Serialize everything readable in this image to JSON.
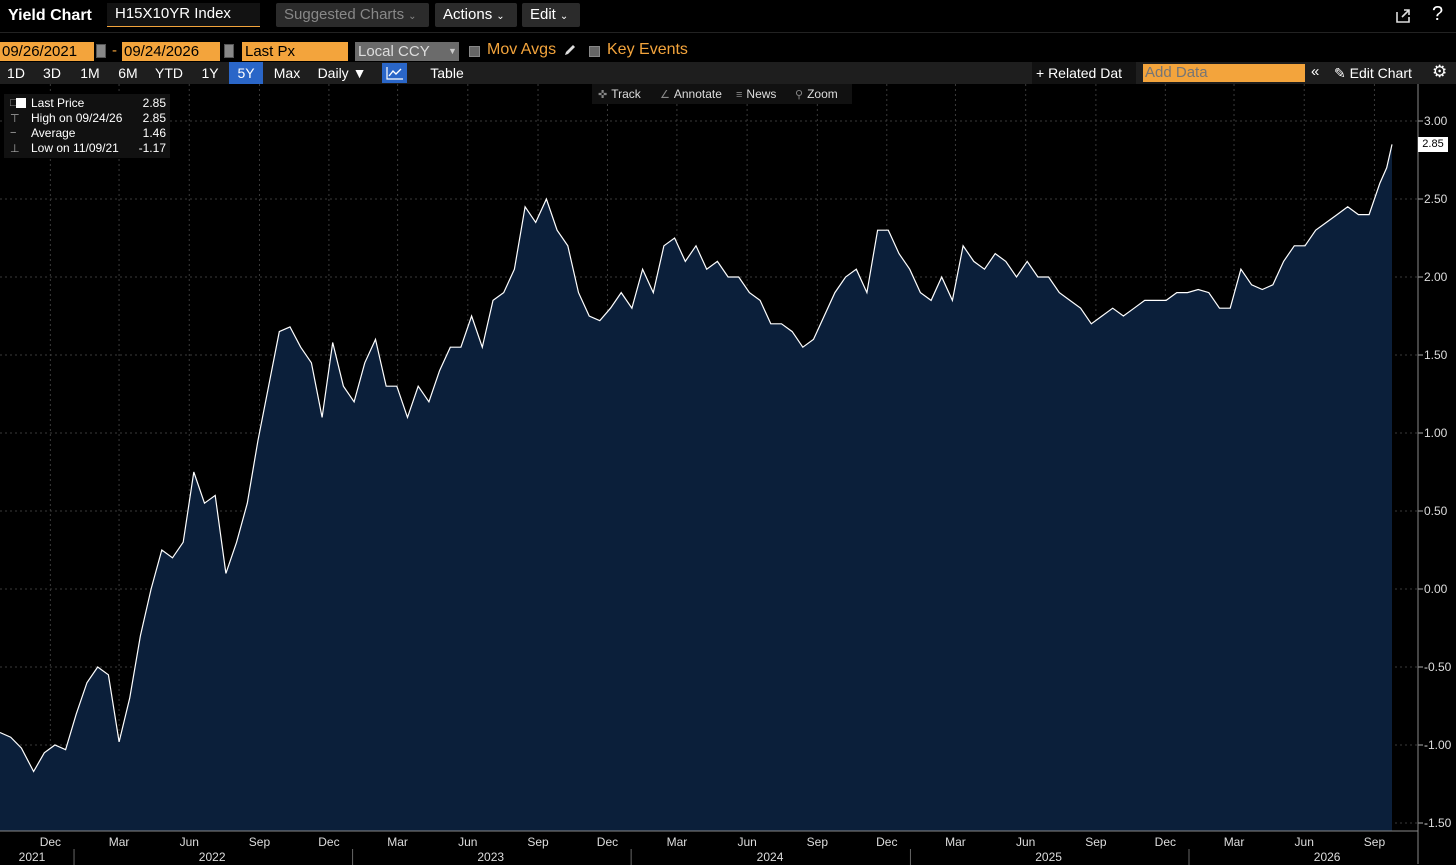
{
  "header": {
    "title": "Yield Chart",
    "ticker": "H15X10YR Index",
    "suggested_label": "Suggested Charts",
    "actions_label": "Actions",
    "edit_label": "Edit",
    "help_label": "?"
  },
  "controls": {
    "start_date": "09/26/2021",
    "end_date": "09/24/2026",
    "date_separator": "-",
    "field": "Last Px",
    "currency": "Local CCY",
    "mov_avgs_label": "Mov Avgs",
    "key_events_label": "Key Events",
    "mov_avgs_checked": false,
    "key_events_checked": false
  },
  "periods": {
    "p1d": "1D",
    "p3d": "3D",
    "p1m": "1M",
    "p6m": "6M",
    "ytd": "YTD",
    "p1y": "1Y",
    "p5y": "5Y",
    "max": "Max",
    "daily": "Daily ▼",
    "table": "Table",
    "active": "5Y"
  },
  "toolbar_right": {
    "related_label": "+ Related Dat",
    "add_data_placeholder": "Add Data",
    "collapse_label": "«",
    "edit_chart_label": "Edit Chart"
  },
  "chart_tools": {
    "track": "Track",
    "annotate": "Annotate",
    "news": "News",
    "zoom": "Zoom"
  },
  "legend": {
    "last_price_label": "Last Price",
    "last_price_value": "2.85",
    "high_label": "High on 09/24/26",
    "high_value": "2.85",
    "average_label": "Average",
    "average_value": "1.46",
    "low_label": "Low on 11/09/21",
    "low_value": "-1.17"
  },
  "last_value_tag": "2.85",
  "colors": {
    "accent_orange": "#f3a43c",
    "active_blue": "#2a66c8",
    "area_fill": "#0b1f3a",
    "line": "#ffffff"
  },
  "chart_data": {
    "type": "area",
    "title": "",
    "xlabel": "",
    "ylabel": "",
    "ylim": [
      -1.5,
      3.0
    ],
    "y_ticks": [
      "3.00",
      "2.50",
      "2.00",
      "1.50",
      "1.00",
      "0.50",
      "0.00",
      "-0.50",
      "-1.00",
      "-1.50"
    ],
    "y_tick_values": [
      3.0,
      2.5,
      2.0,
      1.5,
      1.0,
      0.5,
      0.0,
      -0.5,
      -1.0,
      -1.5
    ],
    "month_ticks": [
      {
        "label": "Dec",
        "date": "2021-12-01"
      },
      {
        "label": "Mar",
        "date": "2022-03-01"
      },
      {
        "label": "Jun",
        "date": "2022-06-01"
      },
      {
        "label": "Sep",
        "date": "2022-09-01"
      },
      {
        "label": "Dec",
        "date": "2022-12-01"
      },
      {
        "label": "Mar",
        "date": "2023-03-01"
      },
      {
        "label": "Jun",
        "date": "2023-06-01"
      },
      {
        "label": "Sep",
        "date": "2023-09-01"
      },
      {
        "label": "Dec",
        "date": "2023-12-01"
      },
      {
        "label": "Mar",
        "date": "2024-03-01"
      },
      {
        "label": "Jun",
        "date": "2024-06-01"
      },
      {
        "label": "Sep",
        "date": "2024-09-01"
      },
      {
        "label": "Dec",
        "date": "2024-12-01"
      },
      {
        "label": "Mar",
        "date": "2025-03-01"
      },
      {
        "label": "Jun",
        "date": "2025-06-01"
      },
      {
        "label": "Sep",
        "date": "2025-09-01"
      },
      {
        "label": "Dec",
        "date": "2025-12-01"
      },
      {
        "label": "Mar",
        "date": "2026-03-01"
      },
      {
        "label": "Jun",
        "date": "2026-06-01"
      },
      {
        "label": "Sep",
        "date": "2026-09-01"
      }
    ],
    "year_ticks": [
      {
        "label": "2021",
        "date": "2021-10-20"
      },
      {
        "label": "2022",
        "date": "2022-07-01"
      },
      {
        "label": "2023",
        "date": "2023-07-01"
      },
      {
        "label": "2024",
        "date": "2024-07-01"
      },
      {
        "label": "2025",
        "date": "2025-07-01"
      },
      {
        "label": "2026",
        "date": "2026-07-01"
      }
    ],
    "year_dividers": [
      "2022-01-01",
      "2023-01-01",
      "2024-01-01",
      "2025-01-01",
      "2026-01-01"
    ],
    "series": [
      {
        "name": "Last Price",
        "points": [
          [
            "2021-09-26",
            -0.92
          ],
          [
            "2021-10-10",
            -0.95
          ],
          [
            "2021-10-24",
            -1.02
          ],
          [
            "2021-11-09",
            -1.17
          ],
          [
            "2021-11-23",
            -1.05
          ],
          [
            "2021-12-07",
            -1.0
          ],
          [
            "2021-12-21",
            -1.03
          ],
          [
            "2022-01-04",
            -0.8
          ],
          [
            "2022-01-18",
            -0.6
          ],
          [
            "2022-02-01",
            -0.5
          ],
          [
            "2022-02-15",
            -0.55
          ],
          [
            "2022-03-01",
            -0.98
          ],
          [
            "2022-03-15",
            -0.7
          ],
          [
            "2022-03-29",
            -0.3
          ],
          [
            "2022-04-12",
            0.0
          ],
          [
            "2022-04-26",
            0.25
          ],
          [
            "2022-05-10",
            0.2
          ],
          [
            "2022-05-24",
            0.3
          ],
          [
            "2022-06-07",
            0.75
          ],
          [
            "2022-06-21",
            0.55
          ],
          [
            "2022-07-05",
            0.6
          ],
          [
            "2022-07-19",
            0.1
          ],
          [
            "2022-08-02",
            0.3
          ],
          [
            "2022-08-16",
            0.55
          ],
          [
            "2022-08-30",
            0.95
          ],
          [
            "2022-09-13",
            1.3
          ],
          [
            "2022-09-27",
            1.65
          ],
          [
            "2022-10-11",
            1.68
          ],
          [
            "2022-10-25",
            1.55
          ],
          [
            "2022-11-08",
            1.45
          ],
          [
            "2022-11-22",
            1.1
          ],
          [
            "2022-12-06",
            1.58
          ],
          [
            "2022-12-20",
            1.3
          ],
          [
            "2023-01-03",
            1.2
          ],
          [
            "2023-01-17",
            1.45
          ],
          [
            "2023-01-31",
            1.6
          ],
          [
            "2023-02-14",
            1.3
          ],
          [
            "2023-02-28",
            1.3
          ],
          [
            "2023-03-14",
            1.1
          ],
          [
            "2023-03-28",
            1.3
          ],
          [
            "2023-04-11",
            1.2
          ],
          [
            "2023-04-25",
            1.4
          ],
          [
            "2023-05-09",
            1.55
          ],
          [
            "2023-05-23",
            1.55
          ],
          [
            "2023-06-06",
            1.75
          ],
          [
            "2023-06-20",
            1.55
          ],
          [
            "2023-07-04",
            1.85
          ],
          [
            "2023-07-18",
            1.9
          ],
          [
            "2023-08-01",
            2.05
          ],
          [
            "2023-08-15",
            2.45
          ],
          [
            "2023-08-29",
            2.35
          ],
          [
            "2023-09-12",
            2.5
          ],
          [
            "2023-09-26",
            2.3
          ],
          [
            "2023-10-10",
            2.2
          ],
          [
            "2023-10-24",
            1.9
          ],
          [
            "2023-11-07",
            1.75
          ],
          [
            "2023-11-21",
            1.72
          ],
          [
            "2023-12-05",
            1.8
          ],
          [
            "2023-12-19",
            1.9
          ],
          [
            "2024-01-02",
            1.8
          ],
          [
            "2024-01-16",
            2.05
          ],
          [
            "2024-01-30",
            1.9
          ],
          [
            "2024-02-13",
            2.2
          ],
          [
            "2024-02-27",
            2.25
          ],
          [
            "2024-03-12",
            2.1
          ],
          [
            "2024-03-26",
            2.2
          ],
          [
            "2024-04-09",
            2.05
          ],
          [
            "2024-04-23",
            2.1
          ],
          [
            "2024-05-07",
            2.0
          ],
          [
            "2024-05-21",
            2.0
          ],
          [
            "2024-06-04",
            1.9
          ],
          [
            "2024-06-18",
            1.85
          ],
          [
            "2024-07-02",
            1.7
          ],
          [
            "2024-07-16",
            1.7
          ],
          [
            "2024-07-30",
            1.65
          ],
          [
            "2024-08-13",
            1.55
          ],
          [
            "2024-08-27",
            1.6
          ],
          [
            "2024-09-10",
            1.75
          ],
          [
            "2024-09-24",
            1.9
          ],
          [
            "2024-10-08",
            2.0
          ],
          [
            "2024-10-22",
            2.05
          ],
          [
            "2024-11-05",
            1.9
          ],
          [
            "2024-11-19",
            2.3
          ],
          [
            "2024-12-03",
            2.3
          ],
          [
            "2024-12-17",
            2.15
          ],
          [
            "2024-12-31",
            2.05
          ],
          [
            "2025-01-14",
            1.9
          ],
          [
            "2025-01-28",
            1.85
          ],
          [
            "2025-02-11",
            2.0
          ],
          [
            "2025-02-25",
            1.85
          ],
          [
            "2025-03-11",
            2.2
          ],
          [
            "2025-03-25",
            2.1
          ],
          [
            "2025-04-08",
            2.05
          ],
          [
            "2025-04-22",
            2.15
          ],
          [
            "2025-05-06",
            2.1
          ],
          [
            "2025-05-20",
            2.0
          ],
          [
            "2025-06-03",
            2.1
          ],
          [
            "2025-06-17",
            2.0
          ],
          [
            "2025-07-01",
            2.0
          ],
          [
            "2025-07-15",
            1.9
          ],
          [
            "2025-07-29",
            1.85
          ],
          [
            "2025-08-12",
            1.8
          ],
          [
            "2025-08-26",
            1.7
          ],
          [
            "2025-09-09",
            1.75
          ],
          [
            "2025-09-23",
            1.8
          ],
          [
            "2025-10-07",
            1.75
          ],
          [
            "2025-10-21",
            1.8
          ],
          [
            "2025-11-04",
            1.85
          ],
          [
            "2025-11-18",
            1.85
          ],
          [
            "2025-12-02",
            1.85
          ],
          [
            "2025-12-16",
            1.9
          ],
          [
            "2025-12-30",
            1.9
          ],
          [
            "2026-01-13",
            1.92
          ],
          [
            "2026-01-27",
            1.9
          ],
          [
            "2026-02-10",
            1.8
          ],
          [
            "2026-02-24",
            1.8
          ],
          [
            "2026-03-10",
            2.05
          ],
          [
            "2026-03-24",
            1.95
          ],
          [
            "2026-04-07",
            1.92
          ],
          [
            "2026-04-21",
            1.95
          ],
          [
            "2026-05-05",
            2.1
          ],
          [
            "2026-05-19",
            2.2
          ],
          [
            "2026-06-02",
            2.2
          ],
          [
            "2026-06-16",
            2.3
          ],
          [
            "2026-06-30",
            2.35
          ],
          [
            "2026-07-14",
            2.4
          ],
          [
            "2026-07-28",
            2.45
          ],
          [
            "2026-08-11",
            2.4
          ],
          [
            "2026-08-25",
            2.4
          ],
          [
            "2026-09-08",
            2.6
          ],
          [
            "2026-09-17",
            2.7
          ],
          [
            "2026-09-24",
            2.85
          ]
        ]
      }
    ]
  }
}
